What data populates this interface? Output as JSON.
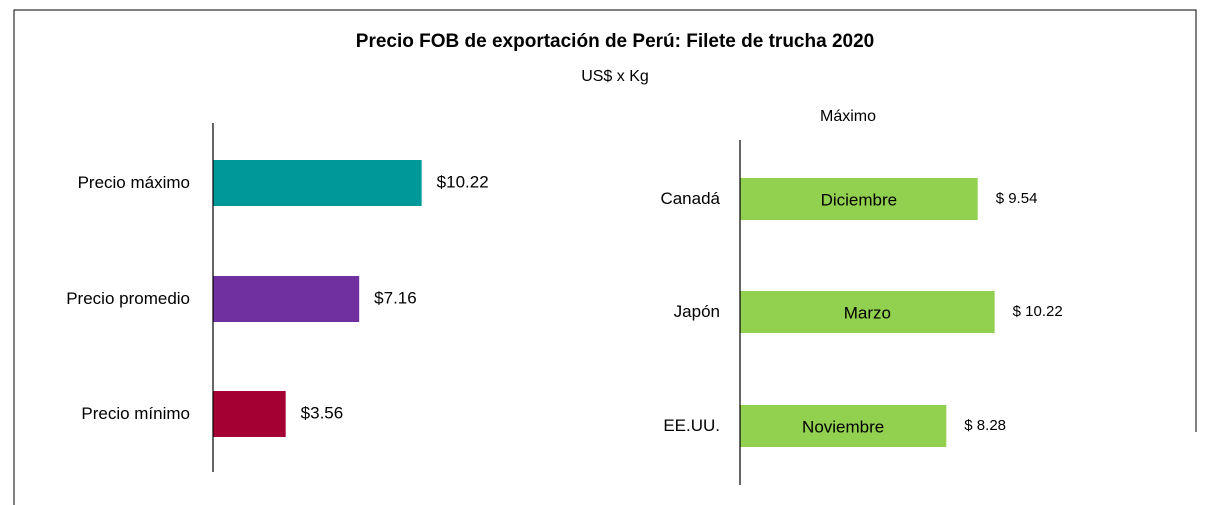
{
  "title": "Precio FOB de exportación de Perú: Filete de trucha 2020",
  "subtitle": "US$ x Kg",
  "chart_data": [
    {
      "type": "barh",
      "categories": [
        "Precio máximo",
        "Precio promedio",
        "Precio mínimo"
      ],
      "values": [
        10.22,
        7.16,
        3.56
      ],
      "value_labels": [
        "$10.22",
        "$7.16",
        "$3.56"
      ],
      "colors": [
        "#009999",
        "#7030a0",
        "#a50034"
      ],
      "xlim": [
        0,
        12
      ]
    },
    {
      "type": "barh",
      "title": "Máximo",
      "categories": [
        "Canadá",
        "Japón",
        "EE.UU."
      ],
      "values": [
        9.54,
        10.22,
        8.28
      ],
      "value_labels": [
        "$ 9.54",
        "$ 10.22",
        "$ 8.28"
      ],
      "bar_labels": [
        "Diciembre",
        "Marzo",
        "Noviembre"
      ],
      "color": "#92d050",
      "xlim": [
        0,
        12
      ]
    }
  ]
}
